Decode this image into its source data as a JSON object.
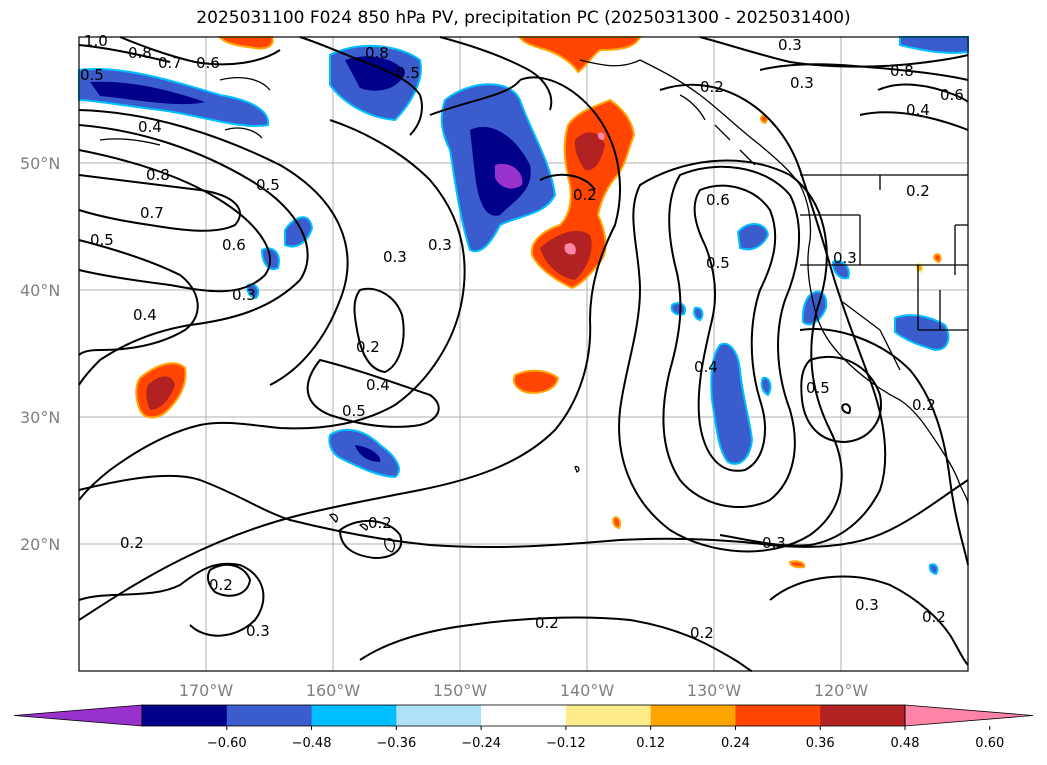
{
  "title": "2025031100 F024 850 hPa PV, precipitation PC (2025031300 - 2025031400)",
  "lat_labels": [
    "50°N",
    "40°N",
    "30°N",
    "20°N"
  ],
  "lon_labels": [
    "170°W",
    "160°W",
    "150°W",
    "140°W",
    "130°W",
    "120°W"
  ],
  "contour_labels": [
    "1.0",
    "0.8",
    "0.7",
    "0.6",
    "0.5",
    "0.4",
    "0.8",
    "0.7",
    "0.5",
    "0.6",
    "0.5",
    "0.4",
    "0.3",
    "0.3",
    "0.2",
    "0.4",
    "0.5",
    "0.2",
    "0.2",
    "0.3",
    "0.2",
    "0.6",
    "0.5",
    "0.4",
    "0.3",
    "0.2",
    "0.3",
    "0.5",
    "0.8",
    "0.6",
    "0.4",
    "0.2",
    "0.3",
    "0.2",
    "0.2",
    "0.3",
    "0.2",
    "0.3",
    "0.2",
    "0.3",
    "0.2",
    "0.8",
    "0.5"
  ],
  "colorbar": {
    "ticks": [
      "−0.60",
      "−0.48",
      "−0.36",
      "−0.24",
      "−0.12",
      "0.12",
      "0.24",
      "0.36",
      "0.48",
      "0.60"
    ],
    "colors": [
      "#9932cc",
      "#00008b",
      "#3a5ccc",
      "#00bfff",
      "#b0e0f8",
      "#ffffff",
      "#ffec8b",
      "#ffa500",
      "#ff4500",
      "#b22222",
      "#ff85a8"
    ]
  }
}
